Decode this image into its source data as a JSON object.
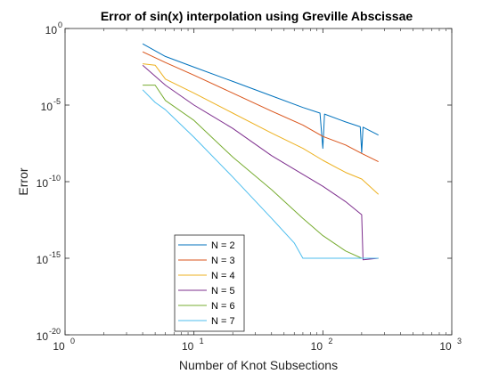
{
  "chart_data": {
    "type": "line",
    "title": "Error of sin(x) interpolation using Greville Abscissae",
    "xlabel": "Number of Knot Subsections",
    "ylabel": "Error",
    "xscale": "log",
    "yscale": "log",
    "xlim": [
      1,
      1000
    ],
    "ylim": [
      1e-20,
      1
    ],
    "x_ticks": [
      {
        "base": "10",
        "exp": "0",
        "value": 1
      },
      {
        "base": "10",
        "exp": "1",
        "value": 10
      },
      {
        "base": "10",
        "exp": "2",
        "value": 100
      },
      {
        "base": "10",
        "exp": "3",
        "value": 1000
      }
    ],
    "y_ticks": [
      {
        "base": "10",
        "exp": "0",
        "value": 1
      },
      {
        "base": "10",
        "exp": "-5",
        "value": 1e-05
      },
      {
        "base": "10",
        "exp": "-10",
        "value": 1e-10
      },
      {
        "base": "10",
        "exp": "-15",
        "value": 1e-15
      },
      {
        "base": "10",
        "exp": "-20",
        "value": 1e-20
      }
    ],
    "grid": false,
    "legend_position": "bottom-left",
    "series": [
      {
        "name": "N = 2",
        "color": "#0072BD",
        "x": [
          4,
          6,
          10,
          20,
          40,
          70,
          95,
          100,
          103,
          150,
          195,
          200,
          205,
          270
        ],
        "y": [
          0.1,
          0.015,
          0.003,
          0.00035,
          4e-05,
          7e-06,
          3e-06,
          1.5e-08,
          2.6e-06,
          8e-07,
          3.8e-07,
          8e-09,
          3.6e-07,
          1.1e-07
        ]
      },
      {
        "name": "N = 3",
        "color": "#D95319",
        "x": [
          4,
          6,
          10,
          20,
          40,
          70,
          100,
          150,
          200,
          270
        ],
        "y": [
          0.03,
          0.006,
          0.0009,
          6e-05,
          4e-06,
          5e-07,
          9e-08,
          2.5e-08,
          7e-09,
          2e-09
        ]
      },
      {
        "name": "N = 4",
        "color": "#EDB120",
        "x": [
          4,
          5,
          6,
          10,
          20,
          40,
          70,
          100,
          150,
          200,
          270
        ],
        "y": [
          0.005,
          0.004,
          0.0005,
          6e-05,
          3e-06,
          1.5e-07,
          1.5e-08,
          2.5e-09,
          4e-10,
          1.5e-10,
          1.5e-11
        ]
      },
      {
        "name": "N = 5",
        "color": "#7E2F8E",
        "x": [
          4,
          6,
          10,
          20,
          40,
          70,
          100,
          150,
          200,
          205,
          270
        ],
        "y": [
          0.004,
          0.0002,
          1e-05,
          3e-07,
          5e-09,
          3e-10,
          5e-11,
          5e-12,
          7e-13,
          8e-16,
          1e-15
        ]
      },
      {
        "name": "N = 6",
        "color": "#77AC30",
        "x": [
          4,
          5,
          6,
          10,
          20,
          40,
          70,
          100,
          150,
          200,
          270
        ],
        "y": [
          0.0002,
          0.0002,
          2e-05,
          1e-06,
          4e-09,
          3e-11,
          4e-13,
          3e-14,
          3e-15,
          1e-15,
          1e-15
        ]
      },
      {
        "name": "N = 7",
        "color": "#4DBEEE",
        "x": [
          4,
          5,
          6,
          10,
          20,
          40,
          60,
          70,
          100,
          150,
          200,
          270
        ],
        "y": [
          0.0001,
          1.5e-05,
          5e-06,
          8e-08,
          2e-10,
          4e-13,
          1e-14,
          1e-15,
          1e-15,
          1e-15,
          1e-15,
          1e-15
        ]
      }
    ]
  }
}
